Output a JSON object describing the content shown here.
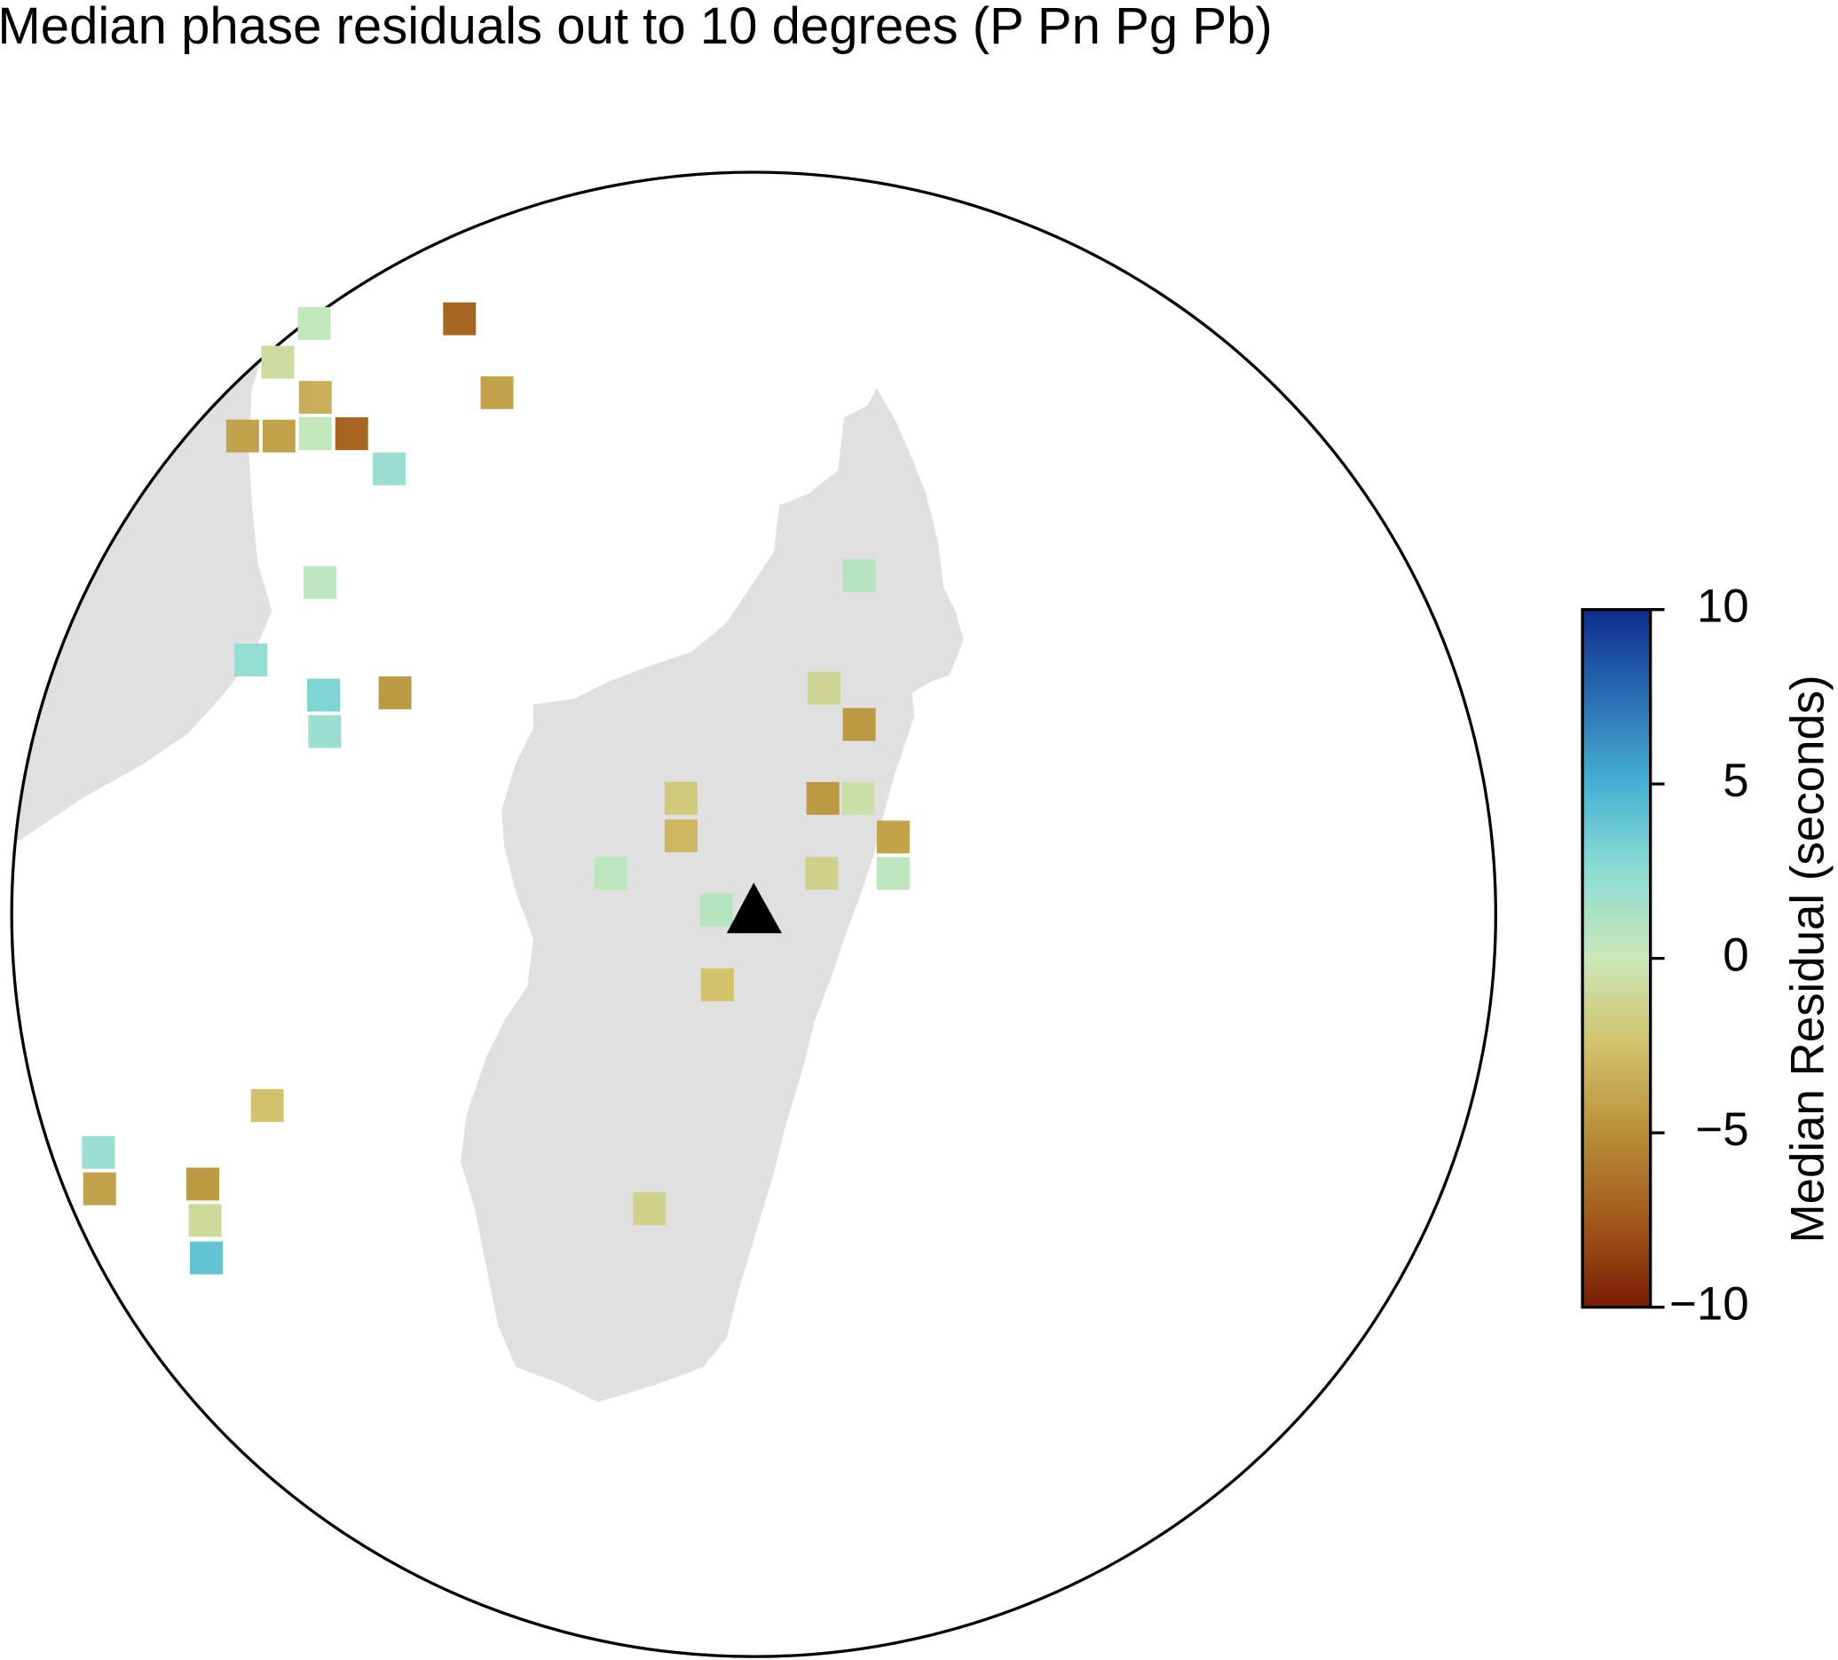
{
  "chart_data": {
    "type": "map",
    "title": "Median phase residuals out to 10 degrees (P Pn Pg Pb)",
    "colorbar_label": "Median Residual (seconds)",
    "clim": [
      -10,
      10
    ],
    "colorscale": [
      "#7a1c03",
      "#a25a1a",
      "#b88f37",
      "#d2c26b",
      "#c9e8b8",
      "#8ddcd4",
      "#45b2d3",
      "#2a6db4",
      "#0d2d8c"
    ],
    "cticks": [
      {
        "value": -10,
        "label": "−10"
      },
      {
        "value": -5,
        "label": "−5"
      },
      0,
      5,
      10
    ],
    "land_color": "#e0e0e0",
    "values": [
      0.3,
      -0.8,
      -3.5,
      -4,
      -4,
      0.3,
      -7,
      -7,
      -4,
      2,
      0.5,
      2.2,
      3,
      -4.5,
      2,
      0.8,
      -1.2,
      -4.5,
      -2,
      -4.5,
      -0.5,
      -3,
      -4,
      0.5,
      -1.5,
      0.5,
      0.8,
      -2.5,
      -2.5,
      2,
      -4,
      -4.5,
      -1,
      4,
      -1.5
    ]
  }
}
